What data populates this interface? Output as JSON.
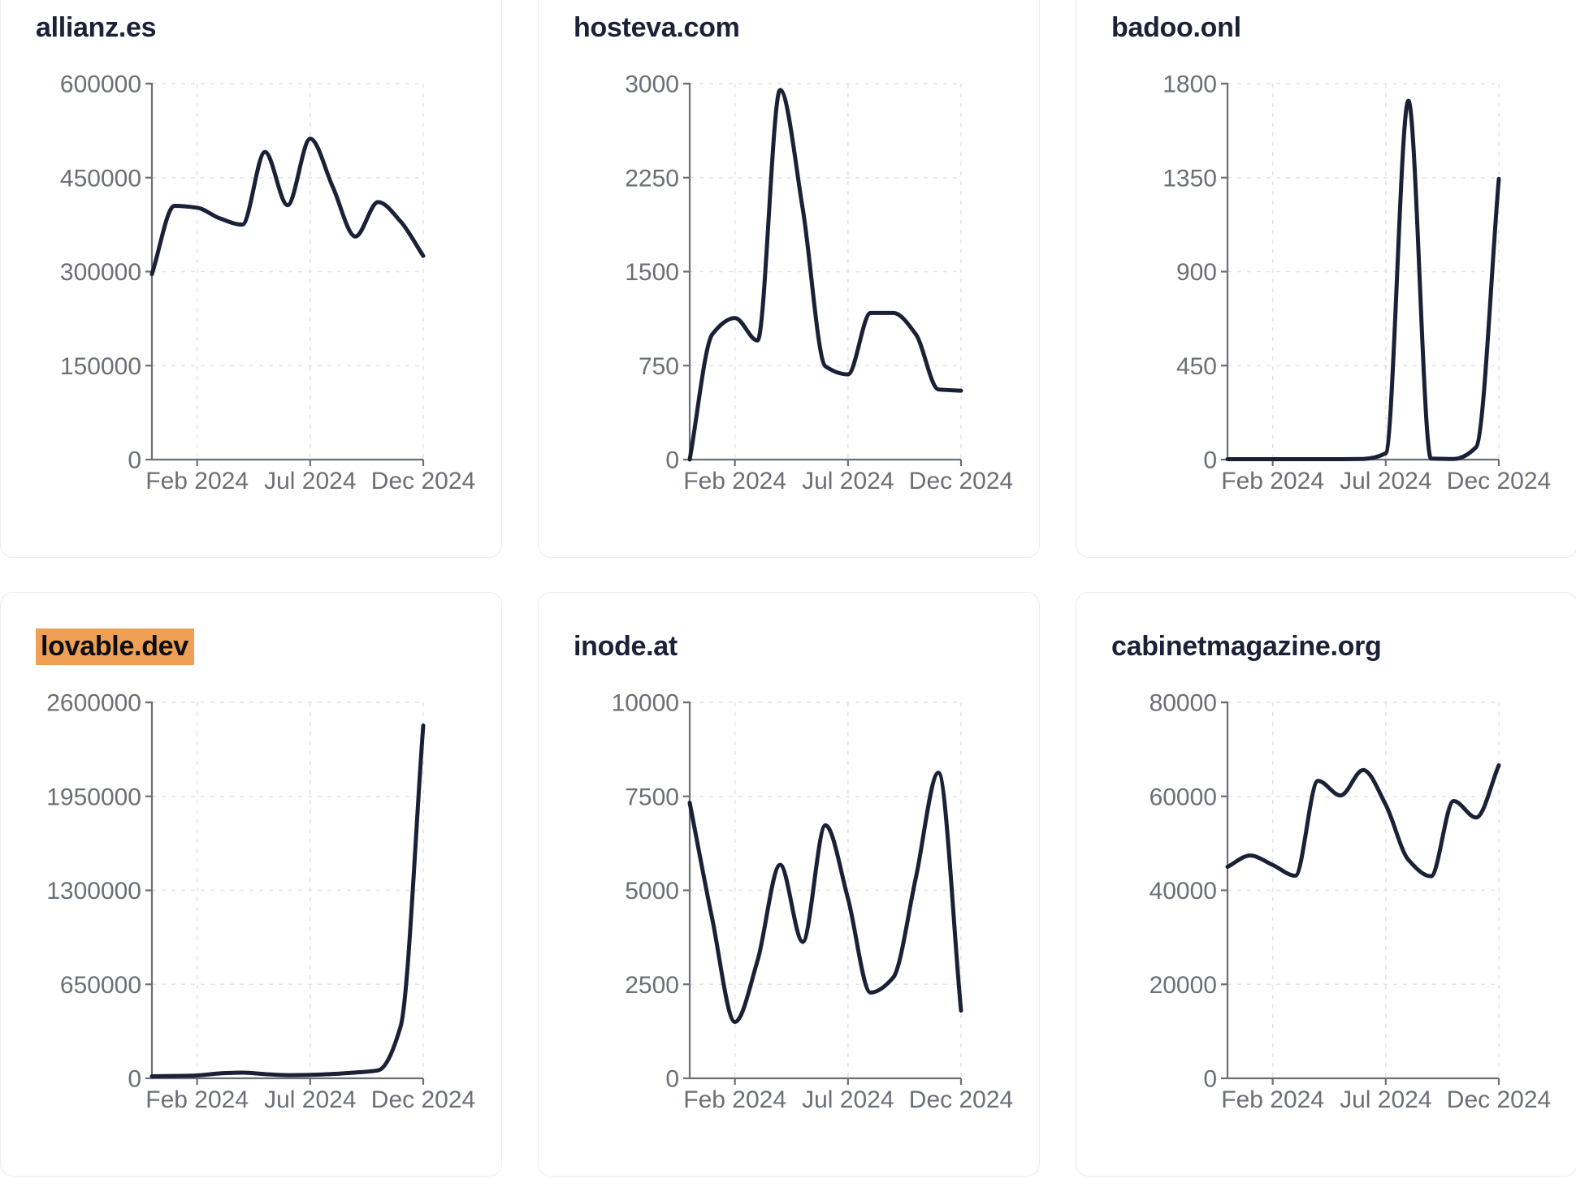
{
  "style": {
    "page_bg": "#ffffff",
    "card_bg": "#ffffff",
    "card_border": "#e9ebf4",
    "title_color": "#1b2137",
    "highlight_bg": "#f0a055",
    "highlight_text": "#0b0e14",
    "line_color": "#1a2137",
    "axis_color": "#6b6f76",
    "tick_label_color": "#6b6f76",
    "grid_color": "#e3e4e9"
  },
  "chart_data": [
    {
      "type": "line",
      "title": "allianz.es",
      "highlighted": false,
      "months": [
        "Dec 2023",
        "Jan 2024",
        "Feb 2024",
        "Mar 2024",
        "Apr 2024",
        "May 2024",
        "Jun 2024",
        "Jul 2024",
        "Aug 2024",
        "Sep 2024",
        "Oct 2024",
        "Nov 2024",
        "Dec 2024"
      ],
      "values": [
        296000,
        405000,
        402000,
        385000,
        375000,
        491000,
        406000,
        512000,
        435000,
        356000,
        411000,
        380000,
        325000
      ],
      "y_ticks": [
        0,
        150000,
        300000,
        450000,
        600000
      ],
      "ylim": [
        0,
        600000
      ],
      "x_tick_labels": [
        "Feb 2024",
        "Jul 2024",
        "Dec 2024"
      ],
      "x_tick_month_indices": [
        2,
        7,
        12
      ],
      "grid": "dashed",
      "legend": "none",
      "xlabel": "",
      "ylabel": ""
    },
    {
      "type": "line",
      "title": "hosteva.com",
      "highlighted": false,
      "months": [
        "Dec 2023",
        "Jan 2024",
        "Feb 2024",
        "Mar 2024",
        "Apr 2024",
        "May 2024",
        "Jun 2024",
        "Jul 2024",
        "Aug 2024",
        "Sep 2024",
        "Oct 2024",
        "Nov 2024",
        "Dec 2024"
      ],
      "values": [
        0,
        1000,
        1130,
        950,
        2950,
        2000,
        745,
        680,
        1170,
        1170,
        1000,
        560,
        550
      ],
      "y_ticks": [
        0,
        750,
        1500,
        2250,
        3000
      ],
      "ylim": [
        0,
        3000
      ],
      "x_tick_labels": [
        "Feb 2024",
        "Jul 2024",
        "Dec 2024"
      ],
      "x_tick_month_indices": [
        2,
        7,
        12
      ],
      "grid": "dashed",
      "legend": "none",
      "xlabel": "",
      "ylabel": ""
    },
    {
      "type": "line",
      "title": "badoo.onl",
      "highlighted": false,
      "months": [
        "Dec 2023",
        "Jan 2024",
        "Feb 2024",
        "Mar 2024",
        "Apr 2024",
        "May 2024",
        "Jun 2024",
        "Jul 2024",
        "Aug 2024",
        "Sep 2024",
        "Oct 2024",
        "Nov 2024",
        "Dec 2024"
      ],
      "values": [
        2,
        2,
        2,
        2,
        2,
        2,
        3,
        30,
        1718,
        5,
        3,
        60,
        1344
      ],
      "y_ticks": [
        0,
        450,
        900,
        1350,
        1800
      ],
      "ylim": [
        0,
        1800
      ],
      "x_tick_labels": [
        "Feb 2024",
        "Jul 2024",
        "Dec 2024"
      ],
      "x_tick_month_indices": [
        2,
        7,
        12
      ],
      "grid": "dashed",
      "legend": "none",
      "xlabel": "",
      "ylabel": ""
    },
    {
      "type": "line",
      "title": "lovable.dev",
      "highlighted": true,
      "months": [
        "Dec 2023",
        "Jan 2024",
        "Feb 2024",
        "Mar 2024",
        "Apr 2024",
        "May 2024",
        "Jun 2024",
        "Jul 2024",
        "Aug 2024",
        "Sep 2024",
        "Oct 2024",
        "Nov 2024",
        "Dec 2024"
      ],
      "values": [
        14000,
        16000,
        20000,
        34000,
        39000,
        29000,
        22000,
        24000,
        30000,
        40000,
        55000,
        360000,
        2440000
      ],
      "y_ticks": [
        0,
        650000,
        1300000,
        1950000,
        2600000
      ],
      "ylim": [
        0,
        2600000
      ],
      "x_tick_labels": [
        "Feb 2024",
        "Jul 2024",
        "Dec 2024"
      ],
      "x_tick_month_indices": [
        2,
        7,
        12
      ],
      "grid": "dashed",
      "legend": "none",
      "xlabel": "",
      "ylabel": ""
    },
    {
      "type": "line",
      "title": "inode.at",
      "highlighted": false,
      "months": [
        "Dec 2023",
        "Jan 2024",
        "Feb 2024",
        "Mar 2024",
        "Apr 2024",
        "May 2024",
        "Jun 2024",
        "Jul 2024",
        "Aug 2024",
        "Sep 2024",
        "Oct 2024",
        "Nov 2024",
        "Dec 2024"
      ],
      "values": [
        7330,
        4230,
        1500,
        3130,
        5680,
        3630,
        6730,
        4780,
        2280,
        2680,
        5330,
        8130,
        1800
      ],
      "y_ticks": [
        0,
        2500,
        5000,
        7500,
        10000
      ],
      "ylim": [
        0,
        10000
      ],
      "x_tick_labels": [
        "Feb 2024",
        "Jul 2024",
        "Dec 2024"
      ],
      "x_tick_month_indices": [
        2,
        7,
        12
      ],
      "grid": "dashed",
      "legend": "none",
      "xlabel": "",
      "ylabel": ""
    },
    {
      "type": "line",
      "title": "cabinetmagazine.org",
      "highlighted": false,
      "months": [
        "Dec 2023",
        "Jan 2024",
        "Feb 2024",
        "Mar 2024",
        "Apr 2024",
        "May 2024",
        "Jun 2024",
        "Jul 2024",
        "Aug 2024",
        "Sep 2024",
        "Oct 2024",
        "Nov 2024",
        "Dec 2024"
      ],
      "values": [
        45000,
        47400,
        45400,
        43100,
        63300,
        60200,
        65600,
        58200,
        46500,
        43000,
        59000,
        55500,
        66600
      ],
      "y_ticks": [
        0,
        20000,
        40000,
        60000,
        80000
      ],
      "ylim": [
        0,
        80000
      ],
      "x_tick_labels": [
        "Feb 2024",
        "Jul 2024",
        "Dec 2024"
      ],
      "x_tick_month_indices": [
        2,
        7,
        12
      ],
      "grid": "dashed",
      "legend": "none",
      "xlabel": "",
      "ylabel": ""
    }
  ]
}
